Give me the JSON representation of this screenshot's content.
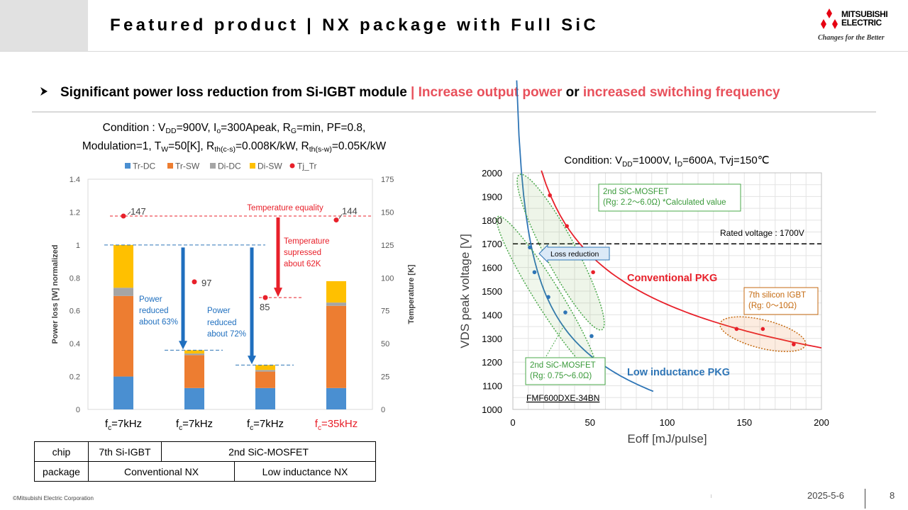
{
  "header": {
    "title": "Featured product | NX package with Full SiC",
    "logo_name_1": "MITSUBISHI",
    "logo_name_2": "ELECTRIC",
    "logo_tagline": "Changes for the Better"
  },
  "bullet": {
    "text_bold": "Significant power loss reduction from Si-IGBT module",
    "sep": " | ",
    "pink_1": "Increase output power",
    "or": " or ",
    "pink_2": "increased switching frequency"
  },
  "left_condition": {
    "l1_a": "Condition : V",
    "l1_dd": "DD",
    "l1_b": "=900V, I",
    "l1_o": "o",
    "l1_c": "=300Apeak, R",
    "l1_g": "G",
    "l1_d": "=min, PF=0.8,",
    "l2_a": "Modulation=1, T",
    "l2_w": "W",
    "l2_b": "=50[K], R",
    "l2_s1": "th(c-s)",
    "l2_c": "=0.008K/kW, R",
    "l2_s2": "th(s-w)",
    "l2_d": "=0.05K/kW"
  },
  "chart_data": [
    {
      "type": "bar",
      "stacked": true,
      "legend_position": "top",
      "legend": [
        "Tr-DC",
        "Tr-SW",
        "Di-DC",
        "Di-SW",
        "Tj_Tr"
      ],
      "categories": [
        "fc=7kHz",
        "fc=7kHz",
        "fc=7kHz",
        "fc=35kHz"
      ],
      "category_parts": [
        {
          "main": "f",
          "sub": "c",
          "rest": "=7kHz",
          "color": "#000000"
        },
        {
          "main": "f",
          "sub": "c",
          "rest": "=7kHz",
          "color": "#000000"
        },
        {
          "main": "f",
          "sub": "c",
          "rest": "=7kHz",
          "color": "#000000"
        },
        {
          "main": "f",
          "sub": "c",
          "rest": "=35kHz",
          "color": "#e8202a"
        }
      ],
      "series": [
        {
          "name": "Tr-DC",
          "color": "#4a8fd1",
          "values": [
            0.2,
            0.13,
            0.13,
            0.13
          ]
        },
        {
          "name": "Tr-SW",
          "color": "#ed7d31",
          "values": [
            0.49,
            0.2,
            0.1,
            0.5
          ]
        },
        {
          "name": "Di-DC",
          "color": "#a5a5a5",
          "values": [
            0.05,
            0.01,
            0.01,
            0.02
          ]
        },
        {
          "name": "Di-SW",
          "color": "#ffc000",
          "values": [
            0.26,
            0.02,
            0.03,
            0.13
          ]
        }
      ],
      "tj_series": {
        "name": "Tj_Tr",
        "color": "#e8202a",
        "values": [
          147,
          97,
          85,
          144
        ],
        "labels": [
          "147",
          "97",
          "85",
          "144"
        ]
      },
      "ylabel": "Power loss [W] normalized",
      "y2label": "Temperature [K]",
      "ylim": [
        0,
        1.4
      ],
      "y2lim": [
        0,
        175
      ],
      "yticks": [
        "0",
        "0.2",
        "0.4",
        "0.6",
        "0.8",
        "1",
        "1.2",
        "1.4"
      ],
      "y2ticks": [
        "0",
        "25",
        "50",
        "75",
        "100",
        "125",
        "150",
        "175"
      ],
      "annotations": {
        "temp_equality": "Temperature equality",
        "temp_suppressed_1": "Temperature",
        "temp_suppressed_2": "supressed",
        "temp_suppressed_3": "about 62K",
        "power_63_1": "Power",
        "power_63_2": "reduced",
        "power_63_3": "about 63%",
        "power_72_1": "Power",
        "power_72_2": "reduced",
        "power_72_3": "about 72%"
      }
    },
    {
      "type": "scatter",
      "title_parts": {
        "a": "Condition: V",
        "sub": "DD",
        "b": "=1000V, I",
        "sub2": "D",
        "c": "=600A, Tvj=150℃"
      },
      "xlabel": "Eoff [mJ/pulse]",
      "ylabel": "VDS peak voltage [V]",
      "xlim": [
        0,
        200
      ],
      "ylim": [
        1000,
        2000
      ],
      "xticks": [
        "0",
        "50",
        "100",
        "150",
        "200"
      ],
      "yticks": [
        "1000",
        "1100",
        "1200",
        "1300",
        "1400",
        "1500",
        "1600",
        "1700",
        "1800",
        "1900",
        "2000"
      ],
      "grid": true,
      "rated_voltage": {
        "value": 1700,
        "label": "Rated voltage : 1700V"
      },
      "series": [
        {
          "name": "Conventional PKG",
          "color": "#e8202a",
          "points": [
            [
              24,
              1905
            ],
            [
              35,
              1775
            ],
            [
              52,
              1580
            ],
            [
              145,
              1340
            ],
            [
              162,
              1340
            ],
            [
              182,
              1275
            ]
          ]
        },
        {
          "name": "Low inductance PKG",
          "color": "#2e75b6",
          "points": [
            [
              11,
              1685
            ],
            [
              14,
              1580
            ],
            [
              23,
              1475
            ],
            [
              34,
              1410
            ],
            [
              51,
              1310
            ]
          ]
        }
      ],
      "annotations": {
        "sic2_upper_1": "2nd SiC-MOSFET",
        "sic2_upper_2": "(Rg: 2.2～6.0Ω) *Calculated value",
        "sic2_lower_1": "2nd SiC-MOSFET",
        "sic2_lower_2": "(Rg: 0.75～6.0Ω)",
        "igbt_1": "7th silicon IGBT",
        "igbt_2": "(Rg: 0～10Ω)",
        "loss_reduction": "Loss reduction",
        "part_number": "FMF600DXE-34BN"
      }
    }
  ],
  "config_table": {
    "r1": [
      "chip",
      "7th Si-IGBT",
      "2nd SiC-MOSFET"
    ],
    "r2": [
      "package",
      "Conventional NX",
      "Low inductance NX"
    ]
  },
  "footer": {
    "copyright": "©Mitsubishi Electric Corporation",
    "date": "2025-5-6",
    "page": "8"
  }
}
